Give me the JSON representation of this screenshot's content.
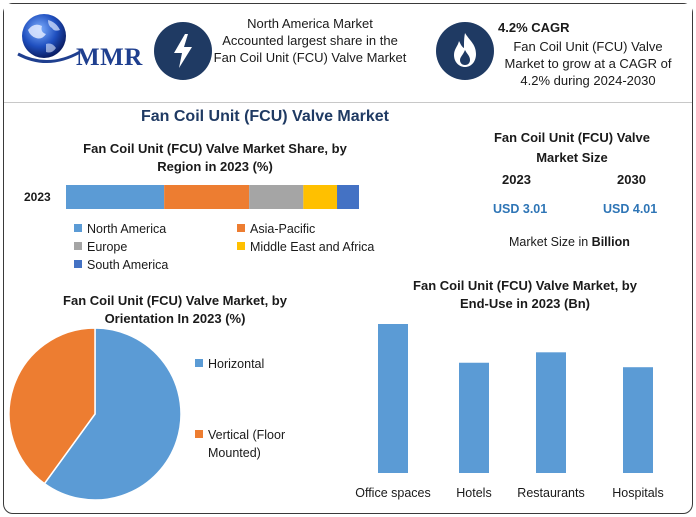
{
  "header": {
    "logo_text": "MMR",
    "info1": {
      "line1": "North America Market",
      "line2": "Accounted largest share in the",
      "line3": "Fan Coil Unit (FCU) Valve Market"
    },
    "info2": {
      "title": "4.2% CAGR",
      "line1": "Fan Coil Unit (FCU) Valve",
      "line2": "Market to grow at a CAGR of",
      "line3": "4.2% during 2024-2030"
    }
  },
  "main_title": "Fan Coil Unit (FCU) Valve Market",
  "market_size": {
    "title_line1": "Fan Coil Unit (FCU) Valve",
    "title_line2": "Market Size",
    "year1": "2023",
    "year2": "2030",
    "value1": "USD 3.01",
    "value2": "USD 4.01",
    "note_prefix": "Market Size in ",
    "note_unit": "Billion"
  },
  "chart_data": [
    {
      "type": "bar",
      "orientation": "horizontal-stacked",
      "title_line1": "Fan Coil Unit (FCU) Valve Market Share, by",
      "title_line2": "Region in 2023 (%)",
      "categories": [
        "2023"
      ],
      "series": [
        {
          "name": "North America",
          "values": [
            33.5
          ],
          "color": "#5b9bd5"
        },
        {
          "name": "Asia-Pacific",
          "values": [
            29
          ],
          "color": "#ed7d31"
        },
        {
          "name": "Europe",
          "values": [
            18.5
          ],
          "color": "#a5a5a5"
        },
        {
          "name": "Middle East and Africa",
          "values": [
            11.5
          ],
          "color": "#ffc000"
        },
        {
          "name": "South America",
          "values": [
            7.5
          ],
          "color": "#4472c4"
        }
      ],
      "legend": "bottom"
    },
    {
      "type": "pie",
      "title_line1": "Fan Coil Unit (FCU) Valve Market, by",
      "title_line2": "Orientation In 2023 (%)",
      "slices": [
        {
          "name": "Horizontal",
          "value": 60,
          "color": "#5b9bd5"
        },
        {
          "name_line1": "Vertical (Floor",
          "name_line2": "Mounted)",
          "value": 40,
          "color": "#ed7d31"
        }
      ],
      "legend": "right"
    },
    {
      "type": "bar",
      "title_line1": "Fan Coil Unit (FCU) Valve Market, by",
      "title_line2": "End-Use in 2023 (Bn)",
      "categories": [
        "Office spaces",
        "Hotels",
        "Restaurants",
        "Hospitals"
      ],
      "values": [
        1.0,
        0.74,
        0.81,
        0.71
      ],
      "color": "#5b9bd5",
      "ylim": [
        0,
        1.0
      ]
    }
  ]
}
